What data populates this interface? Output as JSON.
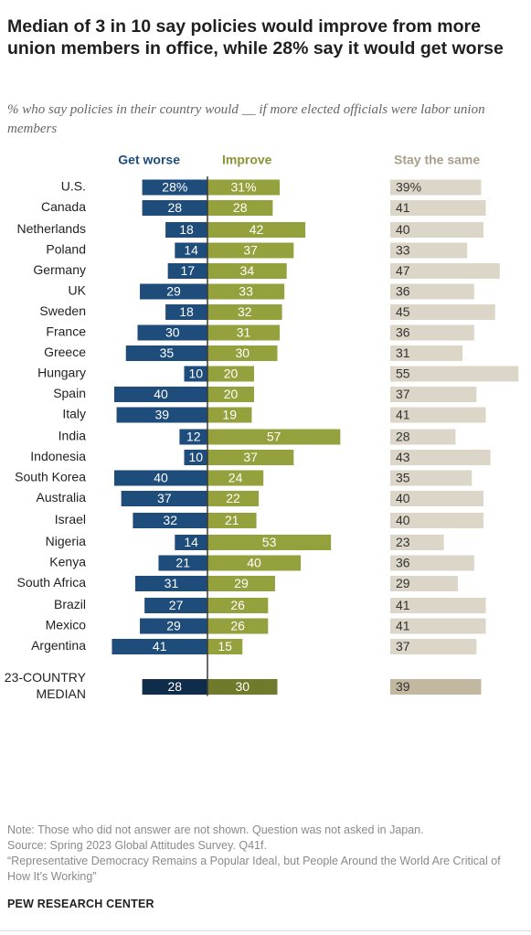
{
  "title": "Median of 3 in 10 say policies would improve from more union members in office, while 28% say it would get worse",
  "subtitle": "% who say policies in their country would __ if more elected officials were labor union members",
  "colors": {
    "get_worse": "#1e4d7b",
    "improve": "#95a13d",
    "stay_same": "#dcd6c8",
    "median_get_worse": "#0f2c4b",
    "median_improve": "#6f7a2a",
    "median_stay_same": "#c2b89f",
    "header_get_worse": "#1e4d7b",
    "header_improve": "#8a9434",
    "header_stay_same": "#a89f89",
    "axis_line": "#3a3a3a"
  },
  "chart_data": {
    "type": "bar",
    "layout": "diverging",
    "series": [
      {
        "name": "Get worse",
        "key": "get_worse"
      },
      {
        "name": "Improve",
        "key": "improve"
      },
      {
        "name": "Stay the same",
        "key": "stay_same"
      }
    ],
    "groups": [
      {
        "rows": [
          {
            "country": "U.S.",
            "get_worse": 28,
            "improve": 31,
            "stay_same": 39,
            "show_percent": true
          },
          {
            "country": "Canada",
            "get_worse": 28,
            "improve": 28,
            "stay_same": 41
          }
        ]
      },
      {
        "rows": [
          {
            "country": "Netherlands",
            "get_worse": 18,
            "improve": 42,
            "stay_same": 40
          },
          {
            "country": "Poland",
            "get_worse": 14,
            "improve": 37,
            "stay_same": 33
          },
          {
            "country": "Germany",
            "get_worse": 17,
            "improve": 34,
            "stay_same": 47
          },
          {
            "country": "UK",
            "get_worse": 29,
            "improve": 33,
            "stay_same": 36
          },
          {
            "country": "Sweden",
            "get_worse": 18,
            "improve": 32,
            "stay_same": 45
          },
          {
            "country": "France",
            "get_worse": 30,
            "improve": 31,
            "stay_same": 36
          },
          {
            "country": "Greece",
            "get_worse": 35,
            "improve": 30,
            "stay_same": 31
          },
          {
            "country": "Hungary",
            "get_worse": 10,
            "improve": 20,
            "stay_same": 55
          },
          {
            "country": "Spain",
            "get_worse": 40,
            "improve": 20,
            "stay_same": 37
          },
          {
            "country": "Italy",
            "get_worse": 39,
            "improve": 19,
            "stay_same": 41
          }
        ]
      },
      {
        "rows": [
          {
            "country": "India",
            "get_worse": 12,
            "improve": 57,
            "stay_same": 28
          },
          {
            "country": "Indonesia",
            "get_worse": 10,
            "improve": 37,
            "stay_same": 43
          },
          {
            "country": "South Korea",
            "get_worse": 40,
            "improve": 24,
            "stay_same": 35
          },
          {
            "country": "Australia",
            "get_worse": 37,
            "improve": 22,
            "stay_same": 40
          }
        ]
      },
      {
        "rows": [
          {
            "country": "Israel",
            "get_worse": 32,
            "improve": 21,
            "stay_same": 40
          }
        ]
      },
      {
        "rows": [
          {
            "country": "Nigeria",
            "get_worse": 14,
            "improve": 53,
            "stay_same": 23
          },
          {
            "country": "Kenya",
            "get_worse": 21,
            "improve": 40,
            "stay_same": 36
          },
          {
            "country": "South Africa",
            "get_worse": 31,
            "improve": 29,
            "stay_same": 29
          }
        ]
      },
      {
        "rows": [
          {
            "country": "Brazil",
            "get_worse": 27,
            "improve": 26,
            "stay_same": 41
          },
          {
            "country": "Mexico",
            "get_worse": 29,
            "improve": 26,
            "stay_same": 41
          },
          {
            "country": "Argentina",
            "get_worse": 41,
            "improve": 15,
            "stay_same": 37
          }
        ]
      }
    ],
    "median": {
      "label_lines": [
        "23-COUNTRY",
        "MEDIAN"
      ],
      "get_worse": 28,
      "improve": 30,
      "stay_same": 39
    }
  },
  "notes": {
    "note": "Note: Those who did not answer are not shown. Question was not asked in Japan.",
    "source": "Source: Spring 2023 Global Attitudes Survey. Q41f.",
    "report_title": "“Representative Democracy Remains a Popular Ideal, but People Around the World Are Critical of How It’s Working”"
  },
  "organization": "PEW RESEARCH CENTER"
}
